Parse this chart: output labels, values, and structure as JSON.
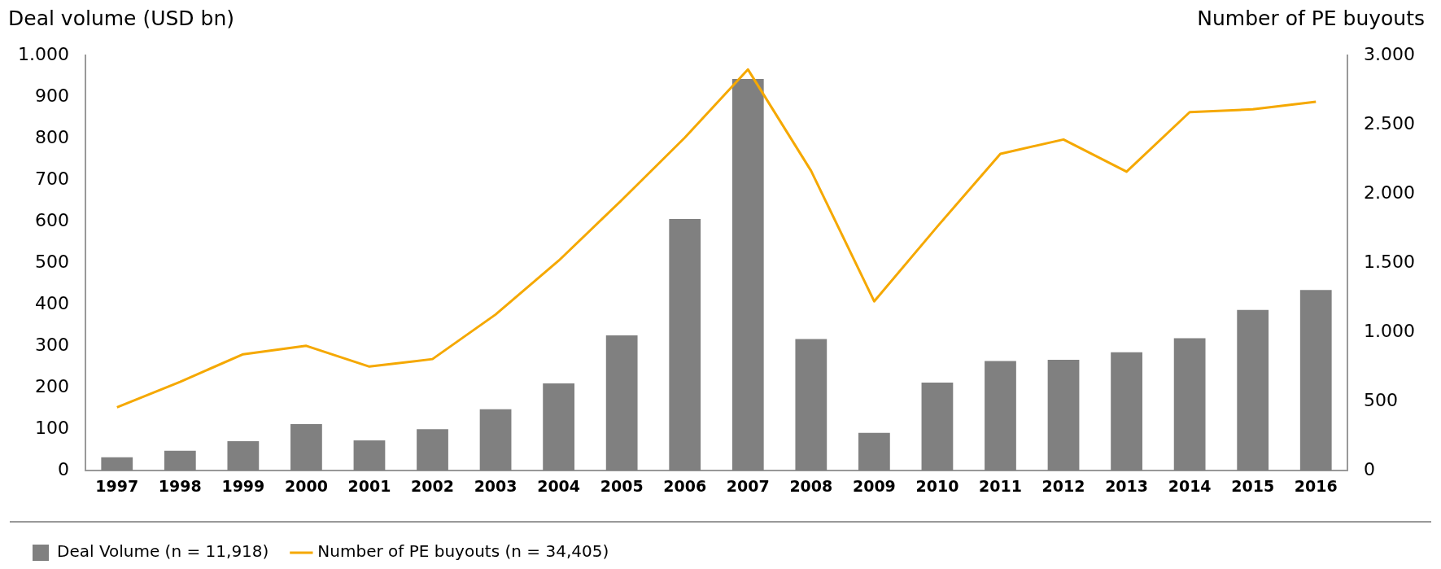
{
  "chart_data": {
    "type": "bar",
    "ylabel": "Deal volume (USD bn)",
    "y2label": "Number of PE buyouts",
    "categories": [
      "1997",
      "1998",
      "1999",
      "2000",
      "2001",
      "2002",
      "2003",
      "2004",
      "2005",
      "2006",
      "2007",
      "2008",
      "2009",
      "2010",
      "2011",
      "2012",
      "2013",
      "2014",
      "2015",
      "2016"
    ],
    "series": [
      {
        "name": "Deal Volume (n = 11,918)",
        "color": "#808080",
        "values": [
          32,
          48,
          71,
          112,
          73,
          100,
          148,
          210,
          326,
          606,
          943,
          317,
          91,
          212,
          264,
          267,
          285,
          319,
          387,
          435
        ]
      },
      {
        "name": "Number of PE buyouts (n = 34,405)",
        "type": "line",
        "axis": "y2",
        "color": "#f5a800",
        "values": [
          458,
          642,
          841,
          902,
          752,
          806,
          1128,
          1517,
          1955,
          2406,
          2898,
          2166,
          1223,
          1763,
          2289,
          2392,
          2160,
          2590,
          2610,
          2665
        ]
      }
    ],
    "ylim": [
      0,
      1000
    ],
    "yticks": [
      0,
      100,
      200,
      300,
      400,
      500,
      600,
      700,
      800,
      900,
      {
        "value": 1000,
        "label": "1.000"
      }
    ],
    "y2lim": [
      0,
      3000
    ],
    "y2ticks": [
      0,
      500,
      {
        "value": 1000,
        "label": "1.000"
      },
      {
        "value": 1500,
        "label": "1.500"
      },
      {
        "value": 2000,
        "label": "2.000"
      },
      {
        "value": 2500,
        "label": "2.500"
      },
      {
        "value": 3000,
        "label": "3.000"
      }
    ],
    "grid": false,
    "legend": "bottom",
    "marker": "none",
    "line_style": "solid"
  }
}
